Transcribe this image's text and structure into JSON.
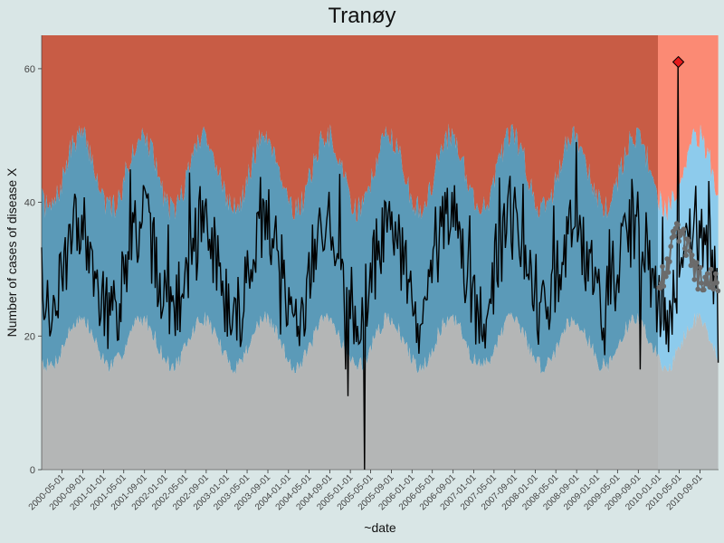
{
  "chart_data": {
    "type": "area",
    "title": "Tranøy",
    "xlabel": "~date",
    "ylabel": "Number of cases of disease X",
    "ylim": [
      0,
      65
    ],
    "xlim": [
      "2000-01-01",
      "2010-12-20"
    ],
    "yticks": [
      0,
      20,
      40,
      60
    ],
    "xticks": [
      "2000-05-01",
      "2000-09-01",
      "2001-01-01",
      "2001-05-01",
      "2001-09-01",
      "2002-01-01",
      "2002-05-01",
      "2002-09-01",
      "2003-01-01",
      "2003-05-01",
      "2003-09-01",
      "2004-01-01",
      "2004-05-01",
      "2004-09-01",
      "2005-01-01",
      "2005-05-01",
      "2005-09-01",
      "2006-01-01",
      "2006-05-01",
      "2006-09-01",
      "2007-01-01",
      "2007-05-01",
      "2007-09-01",
      "2008-01-01",
      "2008-05-01",
      "2008-09-01",
      "2009-01-01",
      "2009-05-01",
      "2009-09-01",
      "2010-01-01",
      "2010-05-01",
      "2010-09-01"
    ],
    "zones": {
      "historical_end": "2010-01-01",
      "colors": {
        "high_hist": "#c85c45",
        "mid_hist": "#5b9ab8",
        "low_hist": "#b4b6b6",
        "high_current": "#fb8a74",
        "mid_current": "#8dcbec",
        "low_current": "#b8bcbd"
      }
    },
    "band_model": {
      "lower_base": 19,
      "lower_amp": 3.5,
      "upper_base": 44.5,
      "upper_amp": 5.5,
      "peak_month": 7.5
    },
    "series_observed": {
      "start": "2000-01-01",
      "step_days": 7,
      "seed": 7,
      "base": 30,
      "amp": 7,
      "noise": 6,
      "anomalies": [
        {
          "date": "2005-03-28",
          "y": 0
        },
        {
          "date": "2004-12-20",
          "y": 11
        },
        {
          "date": "2004-12-06",
          "y": 15
        },
        {
          "date": "2009-09-14",
          "y": 15
        },
        {
          "date": "2010-04-26",
          "y": 61
        },
        {
          "date": "2010-12-20",
          "y": 16
        }
      ]
    },
    "series_baseline": {
      "start": "2010-01-01",
      "end": "2010-12-20",
      "step_days": 7,
      "min": 28,
      "max": 36
    },
    "alert_point": {
      "date": "2010-04-26",
      "y": 61,
      "color": "#e41a1c"
    }
  }
}
